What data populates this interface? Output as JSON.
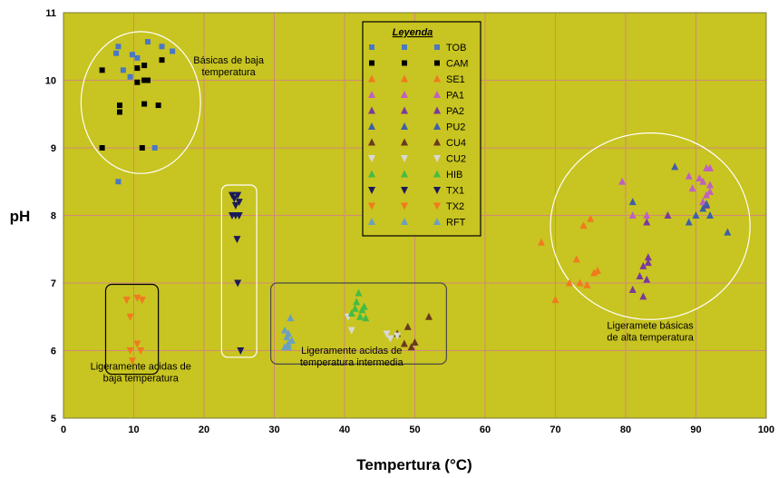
{
  "chart_data": {
    "type": "scatter",
    "xlabel": "Tempertura (°C)",
    "ylabel": "pH",
    "xlim": [
      0,
      100
    ],
    "ylim": [
      5,
      11
    ],
    "x_ticks": [
      "0",
      "10",
      "20",
      "30",
      "40",
      "50",
      "60",
      "70",
      "80",
      "90",
      "100"
    ],
    "y_ticks": [
      "5",
      "6",
      "7",
      "8",
      "9",
      "10",
      "11"
    ],
    "grid": true,
    "plot_background": "#c8c421",
    "grid_color": "#d08a7a",
    "legend": {
      "title": "Leyenda",
      "placement": "top-center"
    },
    "series": [
      {
        "name": "TOB",
        "marker": "square",
        "color": "#4a78c4",
        "points": [
          [
            7.5,
            10.4
          ],
          [
            7.8,
            10.5
          ],
          [
            8.5,
            10.15
          ],
          [
            9.5,
            10.05
          ],
          [
            9.8,
            10.38
          ],
          [
            10.5,
            10.33
          ],
          [
            12,
            10.57
          ],
          [
            14,
            10.5
          ],
          [
            15.5,
            10.43
          ],
          [
            7.8,
            8.5
          ],
          [
            13,
            9.0
          ]
        ]
      },
      {
        "name": "CAM",
        "marker": "square",
        "color": "#000000",
        "points": [
          [
            5.5,
            10.15
          ],
          [
            10.5,
            10.18
          ],
          [
            14,
            10.3
          ],
          [
            11.5,
            10.22
          ],
          [
            10.5,
            9.97
          ],
          [
            11.5,
            10.0
          ],
          [
            12,
            10.0
          ],
          [
            8,
            9.63
          ],
          [
            8,
            9.53
          ],
          [
            11.5,
            9.65
          ],
          [
            13.5,
            9.63
          ],
          [
            5.5,
            9.0
          ],
          [
            11.2,
            9.0
          ]
        ]
      },
      {
        "name": "SE1",
        "marker": "triangle-up",
        "color": "#f07a1e",
        "points": [
          [
            68,
            7.6
          ],
          [
            70,
            6.75
          ],
          [
            72,
            7.0
          ],
          [
            73,
            7.35
          ],
          [
            73.5,
            7.0
          ],
          [
            74,
            7.85
          ],
          [
            74.5,
            6.97
          ],
          [
            75,
            7.95
          ],
          [
            75.5,
            7.15
          ],
          [
            76,
            7.18
          ]
        ]
      },
      {
        "name": "PA1",
        "marker": "triangle-up",
        "color": "#c060c0",
        "points": [
          [
            79.5,
            8.5
          ],
          [
            81,
            8.0
          ],
          [
            83,
            8.0
          ],
          [
            89,
            8.58
          ],
          [
            89.5,
            8.4
          ],
          [
            90.5,
            8.55
          ],
          [
            91,
            8.5
          ],
          [
            91.5,
            8.7
          ],
          [
            92,
            8.45
          ],
          [
            92,
            8.7
          ],
          [
            91.5,
            8.3
          ],
          [
            92,
            8.35
          ],
          [
            91,
            8.2
          ]
        ]
      },
      {
        "name": "PA2",
        "marker": "triangle-up",
        "color": "#7a3a9a",
        "points": [
          [
            81,
            6.9
          ],
          [
            82,
            7.1
          ],
          [
            82.5,
            6.8
          ],
          [
            82.5,
            7.25
          ],
          [
            83,
            7.05
          ],
          [
            83.2,
            7.3
          ],
          [
            83.2,
            7.38
          ],
          [
            83,
            7.9
          ],
          [
            86,
            8.0
          ],
          [
            91.5,
            8.15
          ]
        ]
      },
      {
        "name": "PU2",
        "marker": "triangle-up",
        "color": "#3f5fa8",
        "points": [
          [
            81,
            8.2
          ],
          [
            87,
            8.72
          ],
          [
            89,
            7.9
          ],
          [
            90,
            8.0
          ],
          [
            91,
            8.1
          ],
          [
            91.5,
            8.17
          ],
          [
            92,
            8.0
          ],
          [
            94.5,
            7.75
          ]
        ]
      },
      {
        "name": "CU4",
        "marker": "triangle-up",
        "color": "#6a3a1e",
        "points": [
          [
            47.5,
            6.25
          ],
          [
            48.5,
            6.1
          ],
          [
            49,
            6.35
          ],
          [
            49.5,
            6.05
          ],
          [
            50,
            6.12
          ],
          [
            52,
            6.5
          ]
        ]
      },
      {
        "name": "CU2",
        "marker": "triangle-down",
        "color": "#d8d8d8",
        "points": [
          [
            40.5,
            6.5
          ],
          [
            41,
            6.3
          ],
          [
            46,
            6.25
          ],
          [
            46.5,
            6.18
          ],
          [
            47.5,
            6.22
          ]
        ]
      },
      {
        "name": "HIB",
        "marker": "triangle-up",
        "color": "#44bb44",
        "points": [
          [
            41,
            6.55
          ],
          [
            41.5,
            6.62
          ],
          [
            41.7,
            6.72
          ],
          [
            42,
            6.85
          ],
          [
            42.2,
            6.5
          ],
          [
            42.5,
            6.6
          ],
          [
            43,
            6.48
          ],
          [
            42.8,
            6.65
          ]
        ]
      },
      {
        "name": "TX1",
        "marker": "triangle-down",
        "color": "#1a1a5a",
        "points": [
          [
            24,
            8.3
          ],
          [
            24.3,
            8.25
          ],
          [
            24.8,
            8.3
          ],
          [
            25,
            8.2
          ],
          [
            24.5,
            8.15
          ],
          [
            24,
            8.0
          ],
          [
            24.5,
            8.0
          ],
          [
            25,
            8.0
          ],
          [
            24.7,
            7.65
          ],
          [
            24.8,
            7.0
          ],
          [
            25.2,
            6.0
          ]
        ]
      },
      {
        "name": "TX2",
        "marker": "triangle-down",
        "color": "#f07a1e",
        "points": [
          [
            9,
            6.75
          ],
          [
            9.5,
            6.5
          ],
          [
            10.5,
            6.78
          ],
          [
            11.2,
            6.75
          ],
          [
            10.5,
            6.1
          ],
          [
            9.5,
            6.0
          ],
          [
            11,
            6.0
          ],
          [
            9.8,
            5.85
          ]
        ]
      },
      {
        "name": "RFT",
        "marker": "triangle-up",
        "color": "#6aa0c0",
        "points": [
          [
            31.5,
            6.3
          ],
          [
            31.8,
            6.2
          ],
          [
            32,
            6.1
          ],
          [
            32.3,
            6.48
          ],
          [
            32,
            6.05
          ],
          [
            31.5,
            6.05
          ],
          [
            32.5,
            6.15
          ],
          [
            32,
            6.25
          ]
        ]
      }
    ],
    "annotations": [
      {
        "id": "basicas-baja",
        "lines": [
          "Básicas de baja",
          "temperatura"
        ],
        "at": [
          23.5,
          10.25
        ],
        "anchor": "middle"
      },
      {
        "id": "acidas-baja",
        "lines": [
          "Ligeramente acidas de",
          "baja temperatura"
        ],
        "at": [
          11,
          5.72
        ],
        "anchor": "middle"
      },
      {
        "id": "acidas-intermedia",
        "lines": [
          "Ligeramente acidas de",
          "temperatura intermedia"
        ],
        "at": [
          41,
          5.95
        ],
        "anchor": "middle"
      },
      {
        "id": "basicas-alta",
        "lines": [
          "Ligeramete básicas",
          "de alta temperatura"
        ],
        "at": [
          83.5,
          6.32
        ],
        "anchor": "middle"
      }
    ],
    "groupings": [
      {
        "id": "ellipse-basicas-baja",
        "shape": "ellipse",
        "center": [
          11,
          9.67
        ],
        "radii": [
          8.5,
          1.05
        ],
        "stroke": "#ffffff"
      },
      {
        "id": "rect-acidas-baja",
        "shape": "rounded-rect",
        "from": [
          6,
          5.65
        ],
        "to": [
          13.5,
          6.98
        ],
        "stroke": "#000000"
      },
      {
        "id": "rect-tx1",
        "shape": "rounded-rect",
        "from": [
          22.5,
          5.9
        ],
        "to": [
          27.5,
          8.45
        ],
        "stroke": "#ffffff"
      },
      {
        "id": "rect-acidas-intermedia",
        "shape": "rounded-rect",
        "from": [
          29.5,
          5.8
        ],
        "to": [
          54.5,
          7.0
        ],
        "stroke": "#4a4a4a"
      },
      {
        "id": "circle-basicas-alta",
        "shape": "ellipse",
        "center": [
          83.5,
          7.84
        ],
        "radii": [
          14.2,
          1.38
        ],
        "stroke": "#ffffff"
      }
    ]
  }
}
